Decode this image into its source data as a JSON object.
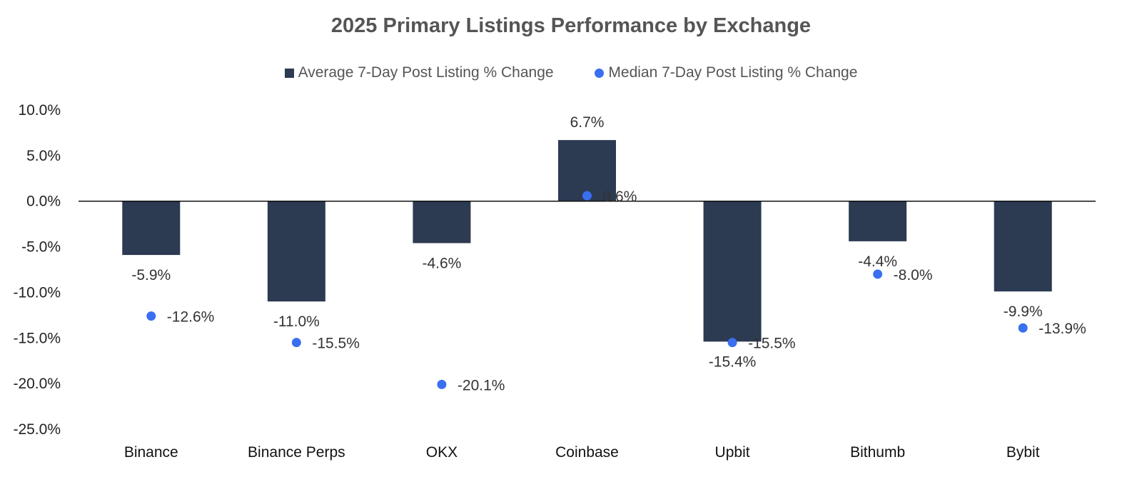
{
  "chart_data": {
    "type": "bar",
    "title": "2025 Primary Listings Performance by Exchange",
    "categories": [
      "Binance",
      "Binance Perps",
      "OKX",
      "Coinbase",
      "Upbit",
      "Bithumb",
      "Bybit"
    ],
    "series": [
      {
        "name": "Average 7-Day Post Listing % Change",
        "kind": "bar",
        "color": "#2c3a52",
        "values": [
          -5.9,
          -11.0,
          -4.6,
          6.7,
          -15.4,
          -4.4,
          -9.9
        ],
        "labels": [
          "-5.9%",
          "-11.0%",
          "-4.6%",
          "6.7%",
          "-15.4%",
          "-4.4%",
          "-9.9%"
        ]
      },
      {
        "name": "Median 7-Day Post Listing % Change",
        "kind": "marker",
        "color": "#3a6ff0",
        "values": [
          -12.6,
          -15.5,
          -20.1,
          0.6,
          -15.5,
          -8.0,
          -13.9
        ],
        "labels": [
          "-12.6%",
          "-15.5%",
          "-20.1%",
          "0.6%",
          "-15.5%",
          "-8.0%",
          "-13.9%"
        ]
      }
    ],
    "ylim": [
      -25,
      10
    ],
    "yticks": [
      10,
      5,
      0,
      -5,
      -10,
      -15,
      -20,
      -25
    ],
    "ytick_labels": [
      "10.0%",
      "5.0%",
      "0.0%",
      "-5.0%",
      "-10.0%",
      "-15.0%",
      "-20.0%",
      "-25.0%"
    ],
    "xlabel": "",
    "ylabel": "",
    "grid": false,
    "legend_position": "top"
  }
}
